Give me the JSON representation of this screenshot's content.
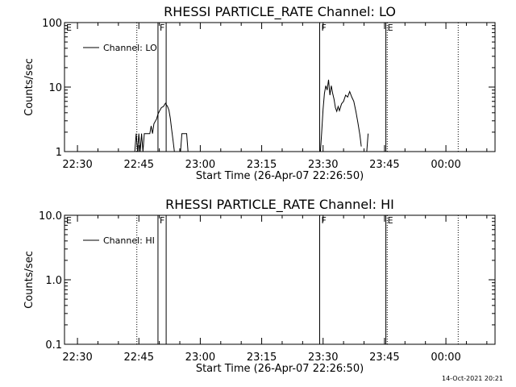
{
  "chart_data": [
    {
      "type": "line",
      "title": "RHESSI PARTICLE_RATE Channel: LO",
      "xlabel": "Start Time (26-Apr-07 22:26:50)",
      "ylabel": "Counts/sec",
      "yscale": "log",
      "ylim": [
        1,
        100
      ],
      "xlim": [
        "22:26:50",
        "00:12:00"
      ],
      "x_tick_labels": [
        "22:30",
        "22:45",
        "23:00",
        "23:15",
        "23:30",
        "23:45",
        "00:00"
      ],
      "y_tick_labels": [
        "1",
        "10",
        "100"
      ],
      "legend": "top-left",
      "series": [
        {
          "name": "Channel: LO",
          "color": "#000000",
          "points": [
            [
              "22:44:00",
              1.0
            ],
            [
              "22:44:20",
              1.9
            ],
            [
              "22:44:40",
              1.0
            ],
            [
              "22:45:00",
              1.9
            ],
            [
              "22:45:20",
              1.0
            ],
            [
              "22:45:40",
              1.9
            ],
            [
              "22:46:00",
              1.0
            ],
            [
              "22:46:20",
              1.9
            ],
            [
              "22:47:00",
              1.9
            ],
            [
              "22:47:40",
              1.9
            ],
            [
              "22:48:00",
              2.5
            ],
            [
              "22:48:20",
              1.9
            ],
            [
              "22:48:40",
              2.7
            ],
            [
              "22:49:20",
              3.2
            ],
            [
              "22:49:40",
              3.8
            ],
            [
              "22:50:00",
              4.2
            ],
            [
              "22:50:30",
              4.8
            ],
            [
              "22:51:00",
              5.0
            ],
            [
              "22:51:30",
              5.6
            ],
            [
              "22:52:00",
              5.0
            ],
            [
              "22:52:20",
              4.4
            ],
            [
              "22:52:40",
              3.3
            ],
            [
              "22:53:00",
              2.2
            ],
            [
              "22:53:20",
              1.5
            ],
            [
              "22:53:40",
              1.0
            ]
          ]
        },
        {
          "name": "Channel: LO",
          "color": "#000000",
          "points": [
            [
              "22:55:10",
              1.0
            ],
            [
              "22:55:30",
              1.9
            ],
            [
              "22:56:40",
              1.9
            ],
            [
              "22:57:00",
              1.0
            ]
          ]
        },
        {
          "name": "Channel: LO",
          "color": "#000000",
          "points": [
            [
              "23:29:20",
              1.0
            ],
            [
              "23:29:40",
              2.0
            ],
            [
              "23:30:00",
              4.5
            ],
            [
              "23:30:20",
              8.0
            ],
            [
              "23:30:40",
              10.5
            ],
            [
              "23:31:00",
              9.0
            ],
            [
              "23:31:20",
              13.0
            ],
            [
              "23:31:40",
              7.5
            ],
            [
              "23:32:00",
              10.5
            ],
            [
              "23:32:20",
              8.0
            ],
            [
              "23:32:40",
              6.5
            ],
            [
              "23:33:00",
              4.8
            ],
            [
              "23:33:20",
              4.2
            ],
            [
              "23:33:40",
              5.0
            ],
            [
              "23:34:00",
              4.3
            ],
            [
              "23:34:30",
              5.5
            ],
            [
              "23:35:00",
              6.0
            ],
            [
              "23:35:30",
              7.5
            ],
            [
              "23:36:00",
              7.0
            ],
            [
              "23:36:30",
              8.5
            ],
            [
              "23:37:00",
              7.0
            ],
            [
              "23:37:30",
              6.0
            ],
            [
              "23:38:00",
              4.2
            ],
            [
              "23:38:30",
              2.8
            ],
            [
              "23:39:00",
              1.8
            ],
            [
              "23:39:20",
              1.2
            ]
          ]
        },
        {
          "name": "Channel: LO",
          "color": "#000000",
          "points": [
            [
              "23:40:40",
              1.0
            ],
            [
              "23:41:00",
              1.9
            ]
          ]
        }
      ],
      "annotations": [
        {
          "label": "E",
          "time": "22:26:50",
          "style": "solid"
        },
        {
          "label": "",
          "time": "22:44:30",
          "style": "dotted"
        },
        {
          "label": "F",
          "time": "22:49:40",
          "style": "solid"
        },
        {
          "label": "",
          "time": "22:51:40",
          "style": "solid"
        },
        {
          "label": "F",
          "time": "23:29:10",
          "style": "solid"
        },
        {
          "label": "E",
          "time": "23:45:20",
          "style": "solid"
        },
        {
          "label": "",
          "time": "23:45:40",
          "style": "dotted"
        },
        {
          "label": "",
          "time": "00:03:00",
          "style": "dotted"
        }
      ]
    },
    {
      "type": "line",
      "title": "RHESSI PARTICLE_RATE Channel: HI",
      "xlabel": "Start Time (26-Apr-07 22:26:50)",
      "ylabel": "Counts/sec",
      "yscale": "log",
      "ylim": [
        0.1,
        10.0
      ],
      "xlim": [
        "22:26:50",
        "00:12:00"
      ],
      "x_tick_labels": [
        "22:30",
        "22:45",
        "23:00",
        "23:15",
        "23:30",
        "23:45",
        "00:00"
      ],
      "y_tick_labels": [
        "0.1",
        "1.0",
        "10.0"
      ],
      "legend": "top-left",
      "series": [
        {
          "name": "Channel: HI",
          "color": "#000000",
          "points": []
        }
      ],
      "annotations": [
        {
          "label": "E",
          "time": "22:26:50",
          "style": "solid"
        },
        {
          "label": "",
          "time": "22:44:30",
          "style": "dotted"
        },
        {
          "label": "F",
          "time": "22:49:40",
          "style": "solid"
        },
        {
          "label": "",
          "time": "22:51:40",
          "style": "solid"
        },
        {
          "label": "F",
          "time": "23:29:10",
          "style": "solid"
        },
        {
          "label": "E",
          "time": "23:45:20",
          "style": "solid"
        },
        {
          "label": "",
          "time": "23:45:40",
          "style": "dotted"
        },
        {
          "label": "",
          "time": "00:03:00",
          "style": "dotted"
        }
      ]
    }
  ],
  "footer": {
    "timestamp": "14-Oct-2021 20:21"
  }
}
